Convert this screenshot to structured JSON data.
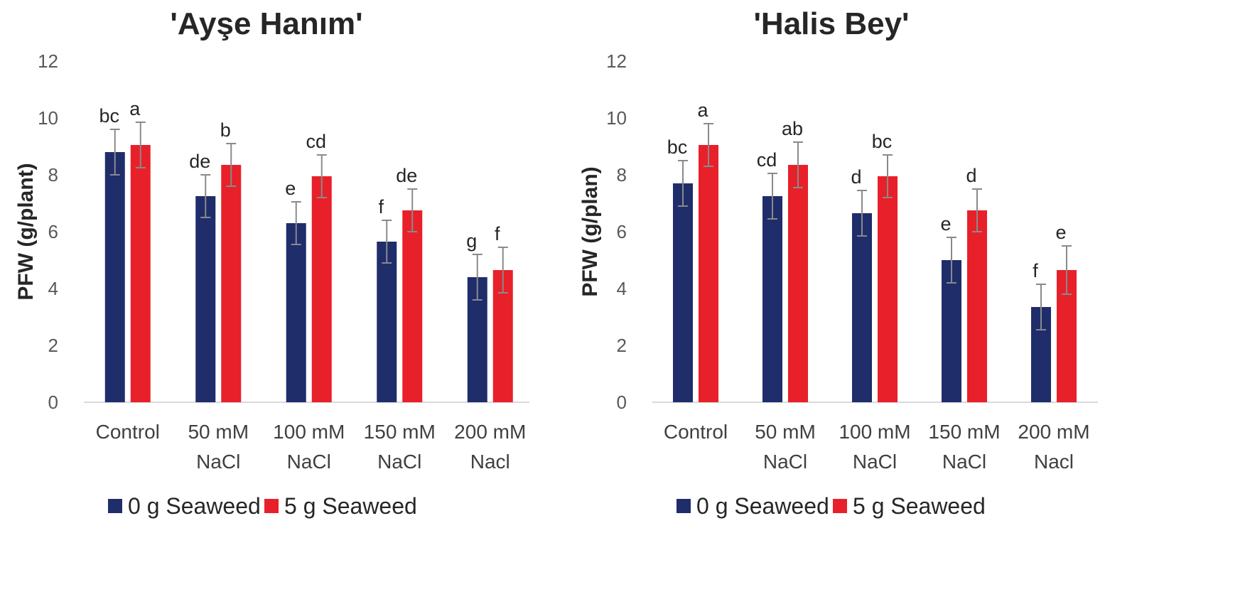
{
  "chart_data": [
    {
      "type": "bar",
      "title": "'Ayşe Hanım'",
      "xlabel": "",
      "ylabel": "PFW (g/plant)",
      "ylim": [
        0,
        12
      ],
      "yticks": [
        "0",
        "2",
        "4",
        "6",
        "8",
        "10",
        "12"
      ],
      "grid": false,
      "legend_position": "bottom",
      "categories": [
        [
          "Control"
        ],
        [
          "50 mM",
          "NaCl"
        ],
        [
          "100 mM",
          "NaCl"
        ],
        [
          "150 mM",
          "NaCl"
        ],
        [
          "200 mM",
          "Nacl"
        ]
      ],
      "series": [
        {
          "name": "0 g Seaweed",
          "color": "#1f2d6b",
          "values": [
            8.8,
            7.25,
            6.3,
            5.65,
            4.4
          ],
          "errors": [
            0.8,
            0.75,
            0.75,
            0.75,
            0.8
          ],
          "labels": [
            "bc",
            "de",
            "e",
            "f",
            "g"
          ]
        },
        {
          "name": "5 g Seaweed",
          "color": "#e8202a",
          "values": [
            9.05,
            8.35,
            7.95,
            6.75,
            4.65
          ],
          "errors": [
            0.8,
            0.75,
            0.75,
            0.75,
            0.8
          ],
          "labels": [
            "a",
            "b",
            "cd",
            "de",
            "f"
          ]
        }
      ]
    },
    {
      "type": "bar",
      "title": "'Halis Bey'",
      "xlabel": "",
      "ylabel": "PFW (g/plan)",
      "ylim": [
        0,
        12
      ],
      "yticks": [
        "0",
        "2",
        "4",
        "6",
        "8",
        "10",
        "12"
      ],
      "grid": false,
      "legend_position": "bottom",
      "categories": [
        [
          "Control"
        ],
        [
          "50 mM",
          "NaCl"
        ],
        [
          "100 mM",
          "NaCl"
        ],
        [
          "150 mM",
          "NaCl"
        ],
        [
          "200 mM",
          "Nacl"
        ]
      ],
      "series": [
        {
          "name": "0 g Seaweed",
          "color": "#1f2d6b",
          "values": [
            7.7,
            7.25,
            6.65,
            5.0,
            3.35
          ],
          "errors": [
            0.8,
            0.8,
            0.8,
            0.8,
            0.8
          ],
          "labels": [
            "bc",
            "cd",
            "d",
            "e",
            "f"
          ]
        },
        {
          "name": "5 g Seaweed",
          "color": "#e8202a",
          "values": [
            9.05,
            8.35,
            7.95,
            6.75,
            4.65
          ],
          "errors": [
            0.75,
            0.8,
            0.75,
            0.75,
            0.85
          ],
          "labels": [
            "a",
            "ab",
            "bc",
            "d",
            "e"
          ]
        }
      ]
    }
  ]
}
